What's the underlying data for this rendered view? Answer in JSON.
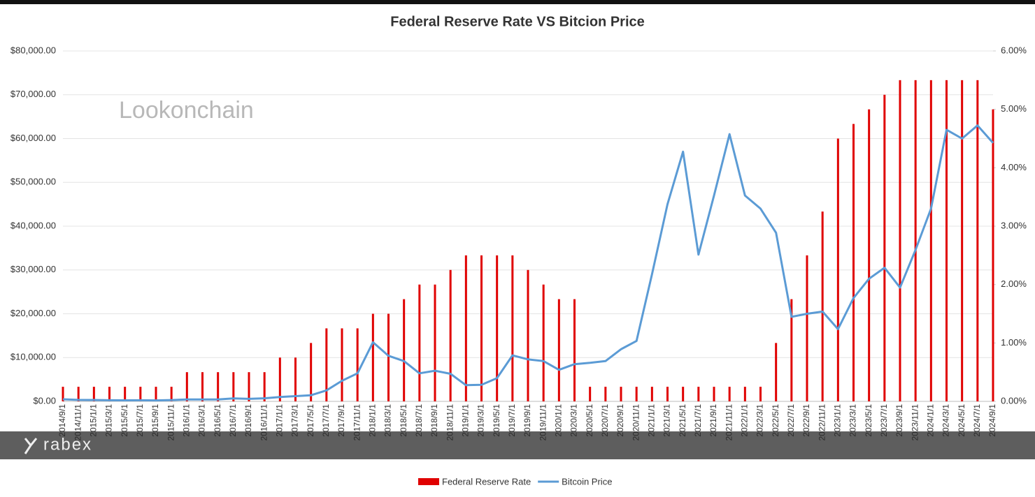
{
  "chart_data": {
    "type": "bar_line",
    "title": "Federal Reserve Rate VS Bitcion Price",
    "annotations": [
      "Lookonchain",
      "rabex"
    ],
    "categories": [
      "2014/9/1",
      "2014/11/1",
      "2015/1/1",
      "2015/3/1",
      "2015/5/1",
      "2015/7/1",
      "2015/9/1",
      "2015/11/1",
      "2016/1/1",
      "2016/3/1",
      "2016/5/1",
      "2016/7/1",
      "2016/9/1",
      "2016/11/1",
      "2017/1/1",
      "2017/3/1",
      "2017/5/1",
      "2017/7/1",
      "2017/9/1",
      "2017/11/1",
      "2018/1/1",
      "2018/3/1",
      "2018/5/1",
      "2018/7/1",
      "2018/9/1",
      "2018/11/1",
      "2019/1/1",
      "2019/3/1",
      "2019/5/1",
      "2019/7/1",
      "2019/9/1",
      "2019/11/1",
      "2020/1/1",
      "2020/3/1",
      "2020/5/1",
      "2020/7/1",
      "2020/9/1",
      "2020/11/1",
      "2021/1/1",
      "2021/3/1",
      "2021/5/1",
      "2021/7/1",
      "2021/9/1",
      "2021/11/1",
      "2022/1/1",
      "2022/3/1",
      "2022/5/1",
      "2022/7/1",
      "2022/9/1",
      "2022/11/1",
      "2023/1/1",
      "2023/3/1",
      "2023/5/1",
      "2023/7/1",
      "2023/9/1",
      "2023/11/1",
      "2024/1/1",
      "2024/3/1",
      "2024/5/1",
      "2024/7/1",
      "2024/9/1"
    ],
    "series": [
      {
        "name": "Federal Reserve Rate",
        "color": "#e00000",
        "axis": "y2",
        "kind": "bar",
        "values": [
          0.25,
          0.25,
          0.25,
          0.25,
          0.25,
          0.25,
          0.25,
          0.25,
          0.5,
          0.5,
          0.5,
          0.5,
          0.5,
          0.5,
          0.75,
          0.75,
          1.0,
          1.25,
          1.25,
          1.25,
          1.5,
          1.5,
          1.75,
          2.0,
          2.0,
          2.25,
          2.5,
          2.5,
          2.5,
          2.5,
          2.25,
          2.0,
          1.75,
          1.75,
          0.25,
          0.25,
          0.25,
          0.25,
          0.25,
          0.25,
          0.25,
          0.25,
          0.25,
          0.25,
          0.25,
          0.25,
          1.0,
          1.75,
          2.5,
          3.25,
          4.5,
          4.75,
          5.0,
          5.25,
          5.5,
          5.5,
          5.5,
          5.5,
          5.5,
          5.5,
          5.0
        ]
      },
      {
        "name": "Bitcoin Price",
        "color": "#5b9bd5",
        "axis": "y",
        "kind": "line",
        "values": [
          480,
          340,
          315,
          260,
          235,
          260,
          230,
          310,
          430,
          435,
          450,
          670,
          570,
          700,
          1000,
          1200,
          1400,
          2500,
          4700,
          6400,
          13500,
          10400,
          9200,
          6400,
          7000,
          6300,
          3700,
          3800,
          5300,
          10500,
          9600,
          9200,
          7200,
          8500,
          8800,
          9200,
          11900,
          13800,
          29000,
          45000,
          57000,
          33500,
          47000,
          61000,
          47000,
          44000,
          38500,
          19300,
          20000,
          20500,
          16500,
          23600,
          28000,
          30500,
          26000,
          34600,
          44000,
          62000,
          60000,
          63000,
          59000
        ]
      }
    ],
    "ylim": [
      0,
      80000
    ],
    "yticks": [
      {
        "value": 0,
        "label": "$0.00"
      },
      {
        "value": 10000,
        "label": "$10,000.00"
      },
      {
        "value": 20000,
        "label": "$20,000.00"
      },
      {
        "value": 30000,
        "label": "$30,000.00"
      },
      {
        "value": 40000,
        "label": "$40,000.00"
      },
      {
        "value": 50000,
        "label": "$50,000.00"
      },
      {
        "value": 60000,
        "label": "$60,000.00"
      },
      {
        "value": 70000,
        "label": "$70,000.00"
      },
      {
        "value": 80000,
        "label": "$80,000.00"
      }
    ],
    "y2lim": [
      0,
      6
    ],
    "y2ticks": [
      {
        "value": 0,
        "label": "0.00%"
      },
      {
        "value": 1,
        "label": "1.00%"
      },
      {
        "value": 2,
        "label": "2.00%"
      },
      {
        "value": 3,
        "label": "3.00%"
      },
      {
        "value": 4,
        "label": "4.00%"
      },
      {
        "value": 5,
        "label": "5.00%"
      },
      {
        "value": 6,
        "label": "6.00%"
      }
    ],
    "grid": true,
    "legend": "bottom"
  }
}
